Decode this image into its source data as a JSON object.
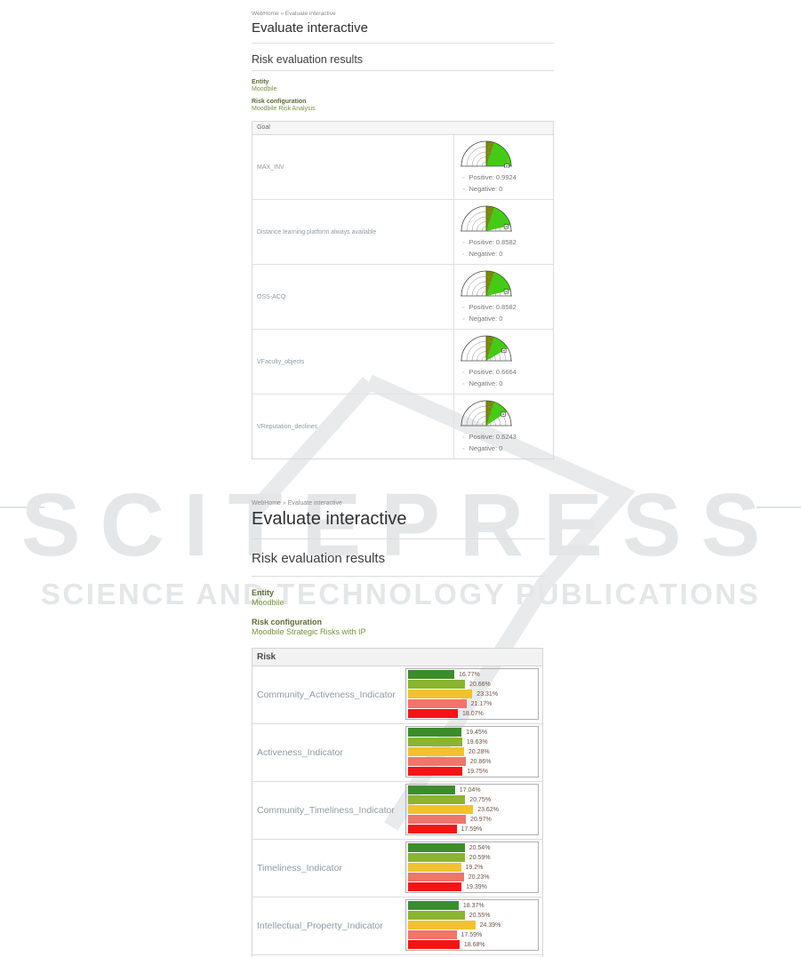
{
  "watermark": {
    "title": "SCITEPRESS",
    "subtitle": "SCIENCE AND TECHNOLOGY PUBLICATIONS",
    "color": "#e4e6e8"
  },
  "page1": {
    "breadcrumb": {
      "home": "WebHome",
      "separator": "»",
      "current": "Evaluate interactive"
    },
    "title": "Evaluate interactive",
    "section_title": "Risk evaluation results",
    "entity_label": "Entity",
    "entity_value": "Moodbile",
    "config_label": "Risk configuration",
    "config_value": "Moodbile Risk Analysis",
    "table_header": "Goal",
    "positive_label": "Positive:",
    "negative_label": "Negative:",
    "rows": [
      {
        "label": "MAX_INV",
        "positive": "0.9924",
        "negative": "0"
      },
      {
        "label": "Distance learning platform always available",
        "positive": "0.8582",
        "negative": "0"
      },
      {
        "label": "OSS-ACQ",
        "positive": "0.8582",
        "negative": "0"
      },
      {
        "label": "VFaculty_objects",
        "positive": "0.6664",
        "negative": "0"
      },
      {
        "label": "VReputation_declines",
        "positive": "0.6243",
        "negative": "0"
      }
    ],
    "gauge_colors": {
      "fill": "#3fd00c",
      "dark_wedge": "#7b8a00",
      "arc": "#4a4a4a",
      "inner_arc": "#8a8a8a"
    }
  },
  "page2": {
    "breadcrumb": {
      "home": "WebHome",
      "separator": "»",
      "current": "Evaluate interactive"
    },
    "title": "Evaluate interactive",
    "section_title": "Risk evaluation results",
    "entity_label": "Entity",
    "entity_value": "Moodbile",
    "config_label": "Risk configuration",
    "config_value": "Moodbile Strategic Risks with IP",
    "table_header": "Risk",
    "bar_colors": [
      "#3d8c2a",
      "#8ab52e",
      "#f2c12e",
      "#f0756b",
      "#f51414"
    ],
    "rows": [
      {
        "label": "Community_Activeness_Indicator",
        "values": [
          "16.77%",
          "20.66%",
          "23.31%",
          "21.17%",
          "18.07%"
        ]
      },
      {
        "label": "Activeness_Indicator",
        "values": [
          "19.45%",
          "19.63%",
          "20.28%",
          "20.86%",
          "19.75%"
        ]
      },
      {
        "label": "Community_Timeliness_Indicator",
        "values": [
          "17.04%",
          "20.75%",
          "23.62%",
          "20.97%",
          "17.59%"
        ]
      },
      {
        "label": "Timeliness_Indicator",
        "values": [
          "20.54%",
          "20.59%",
          "19.2%",
          "20.23%",
          "19.39%"
        ]
      },
      {
        "label": "Intellectual_Property_Indicator",
        "values": [
          "18.37%",
          "20.55%",
          "24.39%",
          "17.59%",
          "18.68%"
        ]
      }
    ]
  }
}
